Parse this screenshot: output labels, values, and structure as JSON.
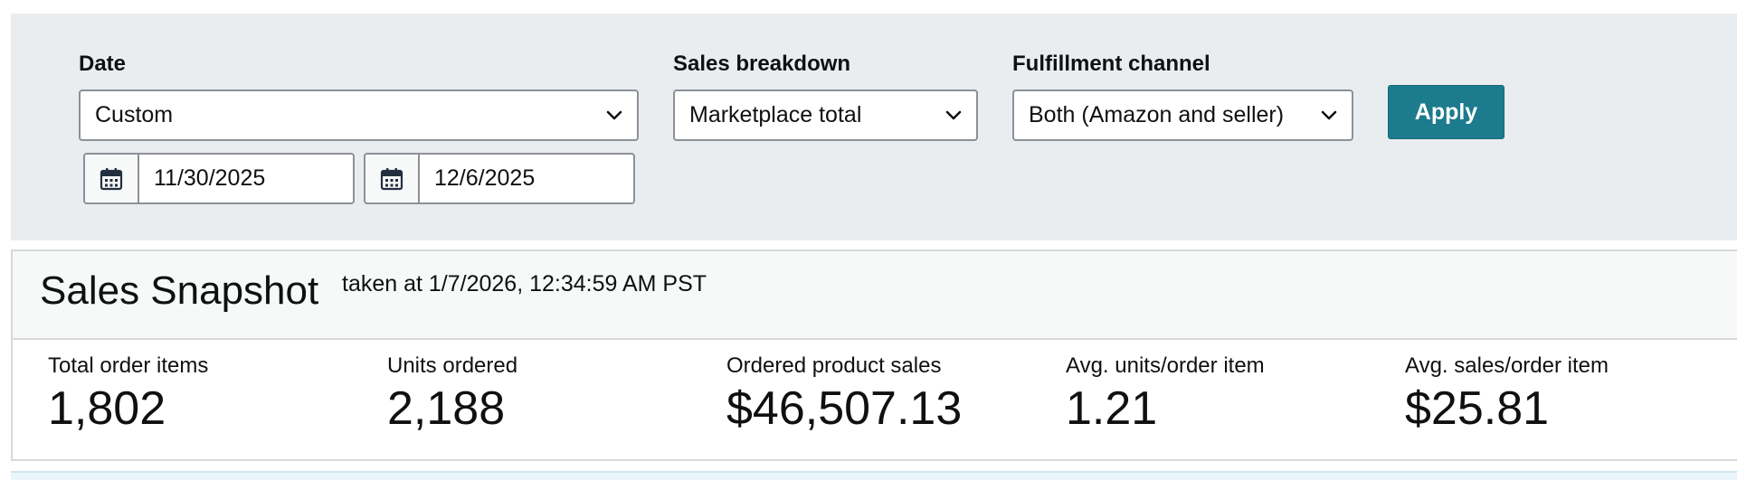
{
  "filters": {
    "date": {
      "label": "Date",
      "selected": "Custom",
      "start_date": "11/30/2025",
      "end_date": "12/6/2025"
    },
    "sales_breakdown": {
      "label": "Sales breakdown",
      "selected": "Marketplace total"
    },
    "fulfillment_channel": {
      "label": "Fulfillment channel",
      "selected": "Both (Amazon and seller)"
    },
    "apply_label": "Apply"
  },
  "snapshot": {
    "title": "Sales Snapshot",
    "taken_at": "taken at 1/7/2026, 12:34:59 AM PST",
    "metrics": [
      {
        "label": "Total order items",
        "value": "1,802"
      },
      {
        "label": "Units ordered",
        "value": "2,188"
      },
      {
        "label": "Ordered product sales",
        "value": "$46,507.13"
      },
      {
        "label": "Avg. units/order item",
        "value": "1.21"
      },
      {
        "label": "Avg. sales/order item",
        "value": "$25.81"
      }
    ]
  },
  "icons": {
    "dropdown": "chevron-down-icon",
    "date_picker": "calendar-icon"
  },
  "colors": {
    "filter_panel_bg": "#eaedef",
    "apply_button_bg": "#1c7b8c",
    "border": "#8d9096",
    "text": "#0f1111"
  }
}
